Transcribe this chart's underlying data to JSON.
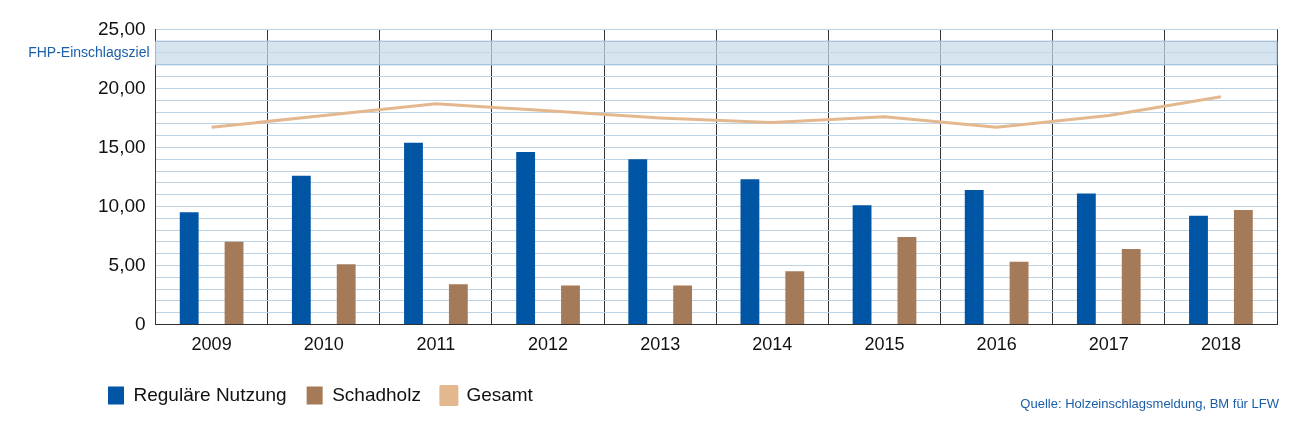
{
  "chart_data": {
    "type": "bar",
    "categories": [
      "2009",
      "2010",
      "2011",
      "2012",
      "2013",
      "2014",
      "2015",
      "2016",
      "2017",
      "2018"
    ],
    "series": [
      {
        "name": "Reguläre Nutzung",
        "color": "#0055a5",
        "values": [
          9.5,
          12.6,
          15.4,
          14.6,
          14.0,
          12.3,
          10.1,
          11.4,
          11.1,
          9.2
        ]
      },
      {
        "name": "Schadholz",
        "color": "#a57a58",
        "values": [
          7.0,
          5.1,
          3.4,
          3.3,
          3.3,
          4.5,
          7.4,
          5.3,
          6.4,
          9.7
        ]
      },
      {
        "name": "Gesamt",
        "type": "line",
        "color": "#e4b88e",
        "values": [
          16.7,
          17.7,
          18.7,
          18.1,
          17.5,
          17.1,
          17.6,
          16.7,
          17.7,
          19.3
        ]
      }
    ],
    "ylim": [
      0,
      25
    ],
    "yticks": [
      {
        "value": 0,
        "label": "0"
      },
      {
        "value": 1,
        "label": null
      },
      {
        "value": 2,
        "label": null
      },
      {
        "value": 3,
        "label": null
      },
      {
        "value": 4,
        "label": null
      },
      {
        "value": 5,
        "label": "5,00"
      },
      {
        "value": 6,
        "label": null
      },
      {
        "value": 7,
        "label": null
      },
      {
        "value": 8,
        "label": null
      },
      {
        "value": 9,
        "label": null
      },
      {
        "value": 10,
        "label": "10,00"
      },
      {
        "value": 11,
        "label": null
      },
      {
        "value": 12,
        "label": null
      },
      {
        "value": 13,
        "label": null
      },
      {
        "value": 14,
        "label": null
      },
      {
        "value": 15,
        "label": "15,00"
      },
      {
        "value": 16,
        "label": null
      },
      {
        "value": 17,
        "label": null
      },
      {
        "value": 18,
        "label": null
      },
      {
        "value": 19,
        "label": null
      },
      {
        "value": 20,
        "label": "20,00"
      },
      {
        "value": 21,
        "label": null
      },
      {
        "value": 22,
        "label": null
      },
      {
        "value": 23,
        "label": null
      },
      {
        "value": 24,
        "label": null
      },
      {
        "value": 25,
        "label": "25,00"
      }
    ],
    "bands": [
      {
        "axis": "y",
        "from": 22,
        "to": 24,
        "label": "FHP-Einschlagsziel",
        "color": "#c5d9ea"
      }
    ],
    "grid": true,
    "legend": "bottom left",
    "annotations": [
      "Quelle: Holzeinschlagsmeldung, BM für LFW"
    ]
  }
}
